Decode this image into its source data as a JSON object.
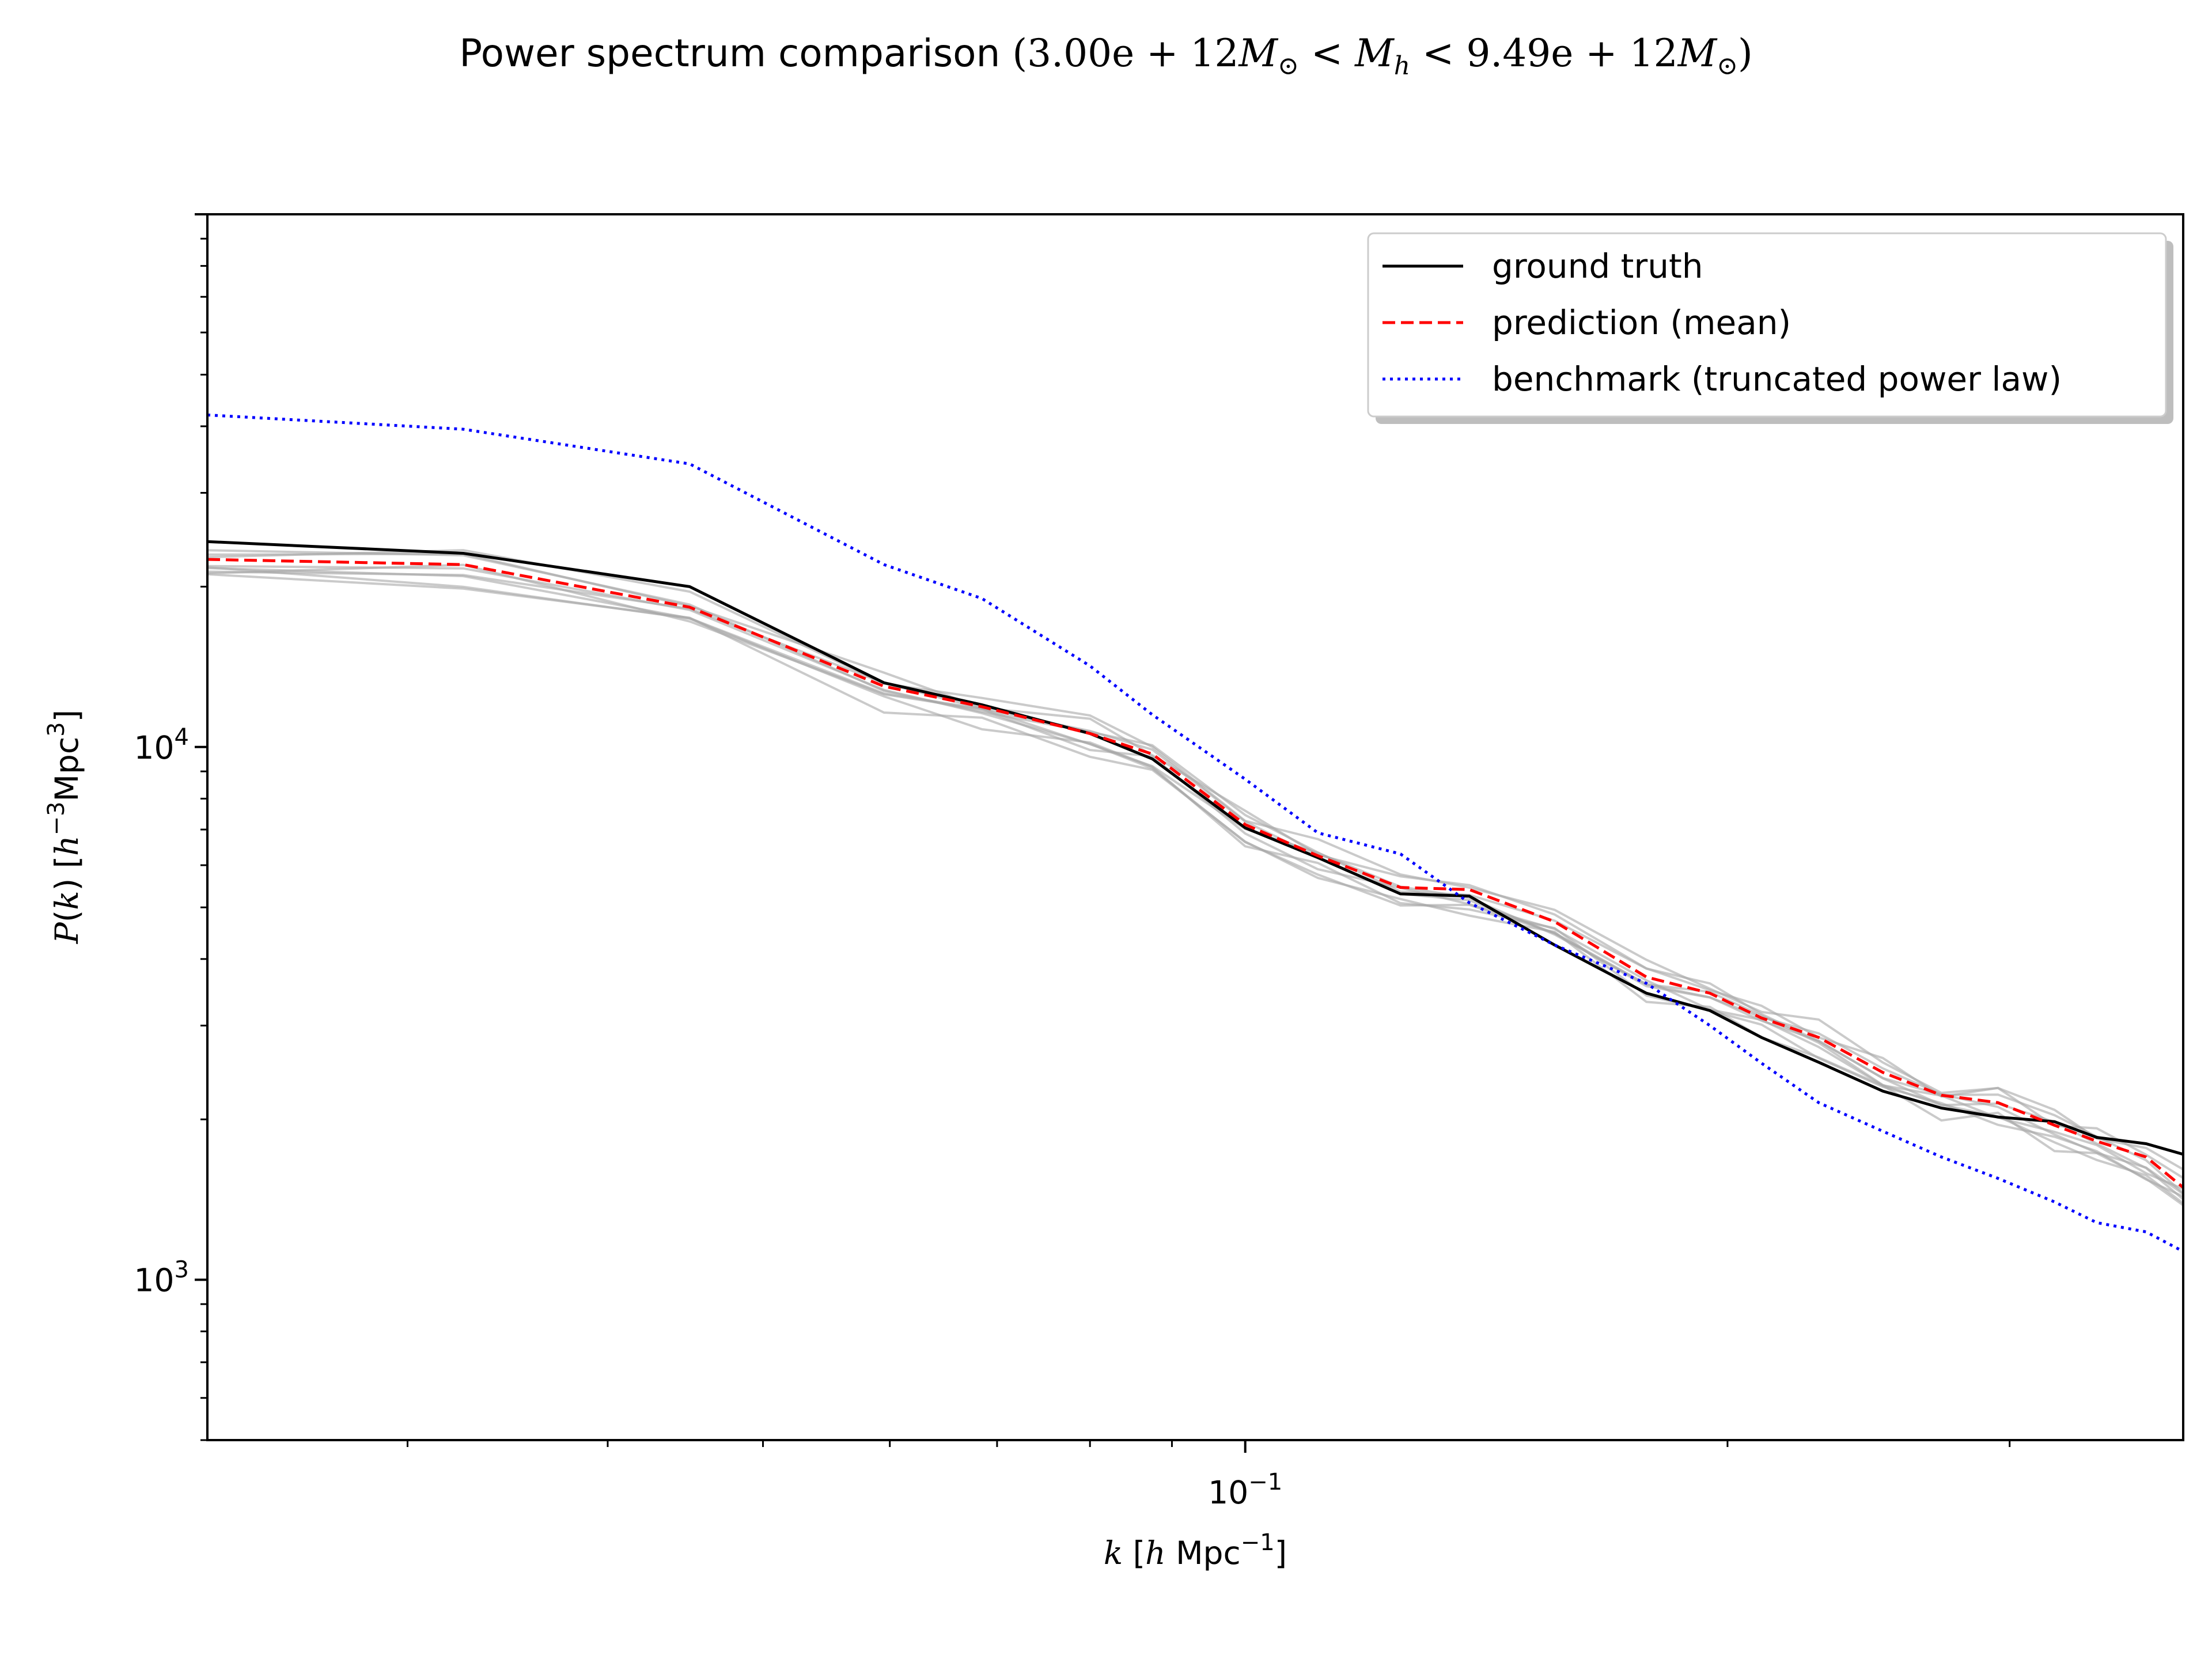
{
  "chart_data": {
    "type": "line",
    "title": {
      "prefix": "Power spectrum comparison ",
      "mass_low": "3.00e + 12",
      "mass_high": "9.49e + 12"
    },
    "xlabel": "k [h Mpc⁻¹]",
    "ylabel": "P(k) [h⁻³Mpc³]",
    "x_scale": "log",
    "y_scale": "log",
    "xlim": [
      0.0225,
      0.385
    ],
    "ylim": [
      500,
      100000
    ],
    "x_major_ticks": [
      {
        "value": 0.1,
        "label": "10",
        "exp": "−1"
      }
    ],
    "y_major_ticks": [
      {
        "value": 1000,
        "label": "10",
        "exp": "3"
      },
      {
        "value": 10000,
        "label": "10",
        "exp": "4"
      }
    ],
    "grid": false,
    "legend_position": "top-right",
    "legend": [
      "ground truth",
      "prediction (mean)",
      "benchmark (truncated power law)"
    ],
    "colors": {
      "ground_truth": "#000000",
      "prediction": "#ff0000",
      "benchmark": "#0000ff",
      "samples": "#a6a6a6"
    },
    "x": [
      0.0225,
      0.0325,
      0.045,
      0.0595,
      0.0685,
      0.08,
      0.0875,
      0.1,
      0.111,
      0.125,
      0.138,
      0.156,
      0.178,
      0.195,
      0.21,
      0.228,
      0.25,
      0.272,
      0.295,
      0.32,
      0.34,
      0.365,
      0.385
    ],
    "series": [
      {
        "name": "ground truth",
        "style": "solid",
        "values": [
          24300,
          23100,
          20000,
          13200,
          12000,
          10600,
          9500,
          7050,
          6200,
          5300,
          5250,
          4250,
          3450,
          3200,
          2850,
          2560,
          2260,
          2100,
          2020,
          1980,
          1850,
          1800,
          1720
        ]
      },
      {
        "name": "prediction (mean)",
        "style": "dashed",
        "values": [
          22500,
          22000,
          18300,
          13000,
          11900,
          10600,
          9700,
          7150,
          6250,
          5450,
          5400,
          4700,
          3700,
          3450,
          3100,
          2850,
          2450,
          2220,
          2150,
          1950,
          1820,
          1700,
          1490
        ]
      },
      {
        "name": "benchmark (truncated power law)",
        "style": "dotted",
        "values": [
          42000,
          39500,
          34000,
          22000,
          19000,
          14200,
          11500,
          8700,
          6900,
          6300,
          5100,
          4250,
          3600,
          3000,
          2550,
          2150,
          1900,
          1700,
          1550,
          1400,
          1280,
          1230,
          1130
        ]
      }
    ],
    "sample_offsets": [
      1.03,
      0.98,
      0.955,
      0.94,
      0.965,
      0.985,
      1.01,
      0.925,
      1.045
    ]
  }
}
